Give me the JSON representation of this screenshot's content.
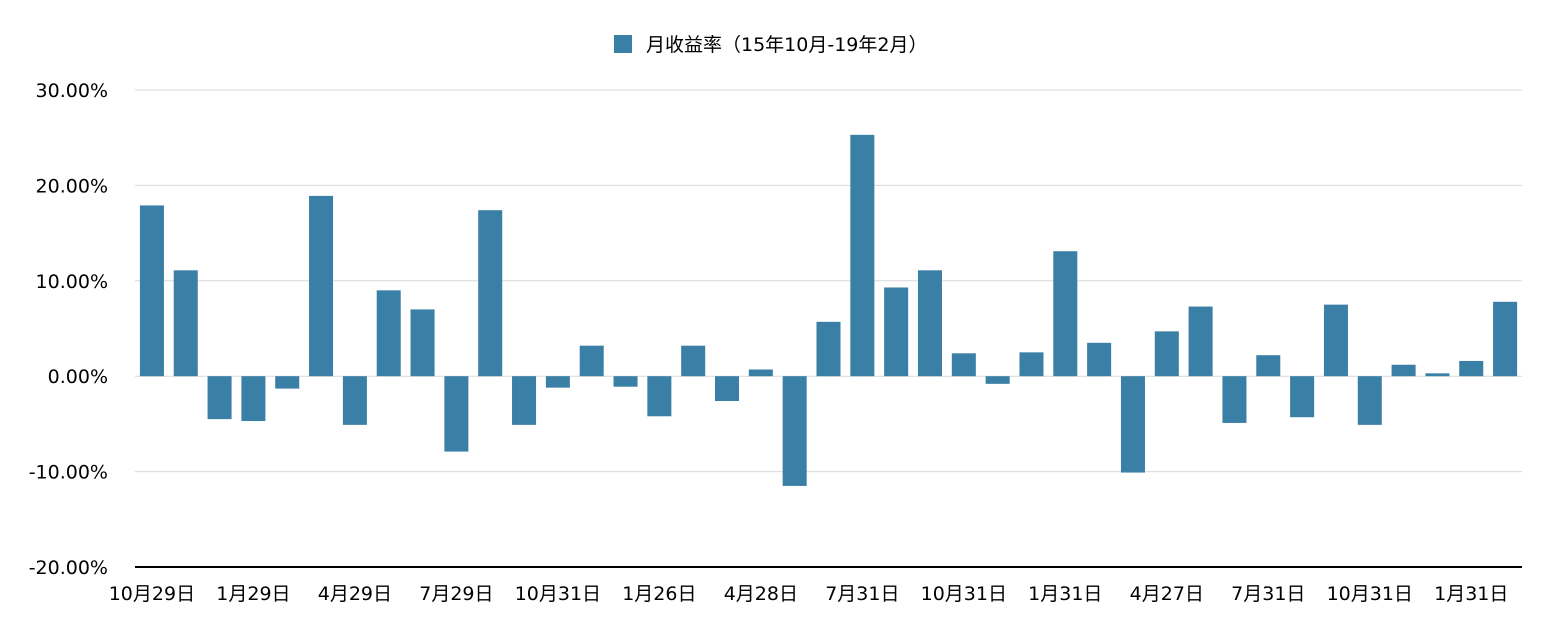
{
  "chart_data": {
    "type": "bar",
    "series": [
      {
        "name": "月收益率（15年10月-19年2月）",
        "color": "#3a7fa5",
        "values": [
          17.9,
          11.1,
          -4.5,
          -4.7,
          -1.3,
          18.9,
          -5.1,
          9.0,
          7.0,
          -7.9,
          17.4,
          -5.1,
          -1.2,
          3.2,
          -1.1,
          -4.2,
          3.2,
          -2.6,
          0.7,
          -11.5,
          5.7,
          25.3,
          9.3,
          11.1,
          2.4,
          -0.8,
          2.5,
          13.1,
          3.5,
          -10.1,
          4.7,
          7.3,
          -4.9,
          2.2,
          -4.3,
          7.5,
          -5.1,
          1.2,
          0.3,
          1.6,
          7.8
        ]
      }
    ],
    "x_tick_labels": [
      "10月29日",
      "1月29日",
      "4月29日",
      "7月29日",
      "10月31日",
      "1月26日",
      "4月28日",
      "7月31日",
      "10月31日",
      "1月31日",
      "4月27日",
      "7月31日",
      "10月31日",
      "1月31日"
    ],
    "x_tick_every": 3,
    "y_ticks": [
      -20,
      -10,
      0,
      10,
      20,
      30
    ],
    "y_tick_labels": [
      "-20.00%",
      "-10.00%",
      "0.00%",
      "10.00%",
      "20.00%",
      "30.00%"
    ],
    "ylim": [
      -20,
      30
    ],
    "grid": true,
    "legend_position": "top-center",
    "xlabel": "",
    "ylabel": ""
  }
}
